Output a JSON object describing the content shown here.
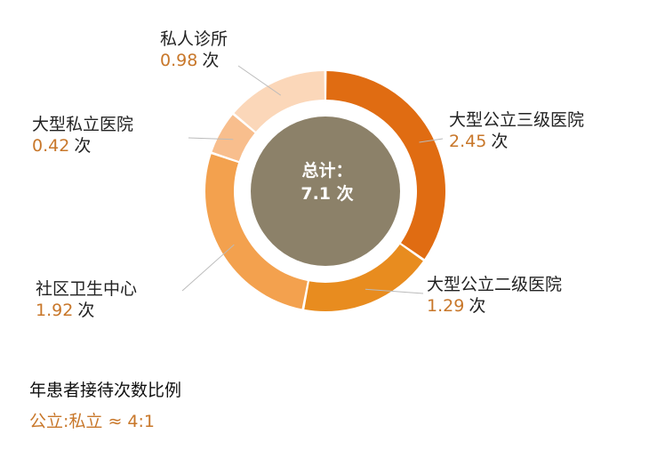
{
  "colors": {
    "slices": [
      "#e06c12",
      "#e88c1f",
      "#f3a14e",
      "#f8be8d",
      "#fbd7b9"
    ],
    "center_fill": "#8c8169",
    "leader": "#bbbbbb",
    "value_text": "#c8772a"
  },
  "chart_data": {
    "type": "pie",
    "title": "",
    "total_label": "总计：",
    "total_value": "7.1",
    "unit": "次",
    "slices": [
      {
        "label": "大型公立三级医院",
        "value": 2.45,
        "value_text": "2.45"
      },
      {
        "label": "大型公立二级医院",
        "value": 1.29,
        "value_text": "1.29"
      },
      {
        "label": "社区卫生中心",
        "value": 1.92,
        "value_text": "1.92"
      },
      {
        "label": "大型私立医院",
        "value": 0.42,
        "value_text": "0.42"
      },
      {
        "label": "私人诊所",
        "value": 0.98,
        "value_text": "0.98"
      }
    ]
  },
  "footer": {
    "title": "年患者接待次数比例",
    "ratio": "公立:私立 ≈ 4:1"
  }
}
